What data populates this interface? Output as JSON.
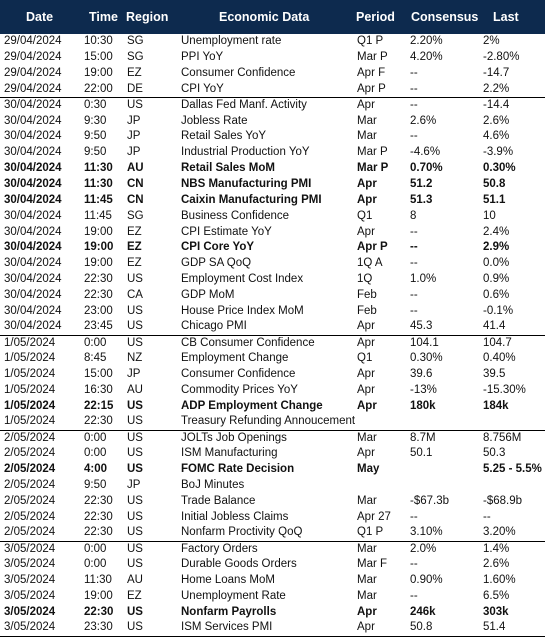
{
  "header": {
    "date": "Date",
    "time": "Time",
    "region": "Region",
    "data": "Economic Data",
    "period": "Period",
    "consensus": "Consensus",
    "last": "Last"
  },
  "rows": [
    {
      "date": "29/04/2024",
      "time": "10:30",
      "region": "SG",
      "data": "Unemployment rate",
      "period": "Q1 P",
      "consensus": "2.20%",
      "last": "2%"
    },
    {
      "date": "29/04/2024",
      "time": "15:00",
      "region": "SG",
      "data": "PPI YoY",
      "period": "Mar P",
      "consensus": "4.20%",
      "last": "-2.80%"
    },
    {
      "date": "29/04/2024",
      "time": "19:00",
      "region": "EZ",
      "data": "Consumer Confidence",
      "period": "Apr F",
      "consensus": "--",
      "last": "-14.7"
    },
    {
      "date": "29/04/2024",
      "time": "22:00",
      "region": "DE",
      "data": "CPI YoY",
      "period": "Apr P",
      "consensus": "--",
      "last": "2.2%"
    },
    {
      "date": "30/04/2024",
      "time": "0:30",
      "region": "US",
      "data": "Dallas Fed Manf. Activity",
      "period": "Apr",
      "consensus": "--",
      "last": "-14.4"
    },
    {
      "date": "30/04/2024",
      "time": "9:30",
      "region": "JP",
      "data": "Jobless Rate",
      "period": "Mar",
      "consensus": "2.6%",
      "last": "2.6%"
    },
    {
      "date": "30/04/2024",
      "time": "9:50",
      "region": "JP",
      "data": "Retail Sales YoY",
      "period": "Mar",
      "consensus": "--",
      "last": "4.6%"
    },
    {
      "date": "30/04/2024",
      "time": "9:50",
      "region": "JP",
      "data": "Industrial Production YoY",
      "period": "Mar P",
      "consensus": "-4.6%",
      "last": "-3.9%"
    },
    {
      "date": "30/04/2024",
      "time": "11:30",
      "region": "AU",
      "data": "Retail Sales MoM",
      "period": "Mar P",
      "consensus": "0.70%",
      "last": "0.30%"
    },
    {
      "date": "30/04/2024",
      "time": "11:30",
      "region": "CN",
      "data": "NBS Manufacturing PMI",
      "period": "Apr",
      "consensus": "51.2",
      "last": "50.8"
    },
    {
      "date": "30/04/2024",
      "time": "11:45",
      "region": "CN",
      "data": "Caixin Manufacturing PMI",
      "period": "Apr",
      "consensus": "51.3",
      "last": "51.1"
    },
    {
      "date": "30/04/2024",
      "time": "11:45",
      "region": "SG",
      "data": "Business Confidence",
      "period": "Q1",
      "consensus": "8",
      "last": "10"
    },
    {
      "date": "30/04/2024",
      "time": "19:00",
      "region": "EZ",
      "data": "CPI Estimate YoY",
      "period": "Apr",
      "consensus": "--",
      "last": "2.4%"
    },
    {
      "date": "30/04/2024",
      "time": "19:00",
      "region": "EZ",
      "data": "CPI Core YoY",
      "period": "Apr P",
      "consensus": "--",
      "last": "2.9%"
    },
    {
      "date": "30/04/2024",
      "time": "19:00",
      "region": "EZ",
      "data": "GDP SA QoQ",
      "period": "1Q A",
      "consensus": "--",
      "last": "0.0%"
    },
    {
      "date": "30/04/2024",
      "time": "22:30",
      "region": "US",
      "data": "Employment Cost Index",
      "period": "1Q",
      "consensus": "1.0%",
      "last": "0.9%"
    },
    {
      "date": "30/04/2024",
      "time": "22:30",
      "region": "CA",
      "data": "GDP MoM",
      "period": "Feb",
      "consensus": "--",
      "last": "0.6%"
    },
    {
      "date": "30/04/2024",
      "time": "23:00",
      "region": "US",
      "data": "House Price Index MoM",
      "period": "Feb",
      "consensus": "--",
      "last": "-0.1%"
    },
    {
      "date": "30/04/2024",
      "time": "23:45",
      "region": "US",
      "data": "Chicago PMI",
      "period": "Apr",
      "consensus": "45.3",
      "last": "41.4"
    },
    {
      "date": "1/05/2024",
      "time": "0:00",
      "region": "US",
      "data": "CB Consumer Confidence",
      "period": "Apr",
      "consensus": "104.1",
      "last": "104.7"
    },
    {
      "date": "1/05/2024",
      "time": "8:45",
      "region": "NZ",
      "data": "Employment Change",
      "period": "Q1",
      "consensus": "0.30%",
      "last": "0.40%"
    },
    {
      "date": "1/05/2024",
      "time": "15:00",
      "region": "JP",
      "data": "Consumer Confidence",
      "period": "Apr",
      "consensus": "39.6",
      "last": "39.5"
    },
    {
      "date": "1/05/2024",
      "time": "16:30",
      "region": "AU",
      "data": "Commodity Prices YoY",
      "period": "Apr",
      "consensus": "-13%",
      "last": "-15.30%"
    },
    {
      "date": "1/05/2024",
      "time": "22:15",
      "region": "US",
      "data": "ADP Employment Change",
      "period": "Apr",
      "consensus": "180k",
      "last": "184k"
    },
    {
      "date": "1/05/2024",
      "time": "22:30",
      "region": "US",
      "data": "Treasury Refunding Annoucement",
      "period": "",
      "consensus": "",
      "last": ""
    },
    {
      "date": "2/05/2024",
      "time": "0:00",
      "region": "US",
      "data": "JOLTs Job Openings",
      "period": "Mar",
      "consensus": "8.7M",
      "last": "8.756M"
    },
    {
      "date": "2/05/2024",
      "time": "0:00",
      "region": "US",
      "data": "ISM Manufacturing",
      "period": "Apr",
      "consensus": "50.1",
      "last": "50.3"
    },
    {
      "date": "2/05/2024",
      "time": "4:00",
      "region": "US",
      "data": "FOMC Rate Decision",
      "period": "May",
      "consensus": "",
      "last": "5.25 - 5.5%"
    },
    {
      "date": "2/05/2024",
      "time": "9:50",
      "region": "JP",
      "data": "BoJ Minutes",
      "period": "",
      "consensus": "",
      "last": ""
    },
    {
      "date": "2/05/2024",
      "time": "22:30",
      "region": "US",
      "data": "Trade Balance",
      "period": "Mar",
      "consensus": "-$67.3b",
      "last": "-$68.9b"
    },
    {
      "date": "2/05/2024",
      "time": "22:30",
      "region": "US",
      "data": "Initial Jobless Claims",
      "period": "Apr 27",
      "consensus": "--",
      "last": "--"
    },
    {
      "date": "2/05/2024",
      "time": "22:30",
      "region": "US",
      "data": "Nonfarm Proctivity QoQ",
      "period": "Q1 P",
      "consensus": "3.10%",
      "last": "3.20%"
    },
    {
      "date": "3/05/2024",
      "time": "0:00",
      "region": "US",
      "data": "Factory Orders",
      "period": "Mar",
      "consensus": "2.0%",
      "last": "1.4%"
    },
    {
      "date": "3/05/2024",
      "time": "0:00",
      "region": "US",
      "data": "Durable Goods Orders",
      "period": "Mar F",
      "consensus": "--",
      "last": "2.6%"
    },
    {
      "date": "3/05/2024",
      "time": "11:30",
      "region": "AU",
      "data": "Home Loans MoM",
      "period": "Mar",
      "consensus": "0.90%",
      "last": "1.60%"
    },
    {
      "date": "3/05/2024",
      "time": "19:00",
      "region": "EZ",
      "data": "Unemployment Rate",
      "period": "Mar",
      "consensus": "--",
      "last": "6.5%"
    },
    {
      "date": "3/05/2024",
      "time": "22:30",
      "region": "US",
      "data": "Nonfarm Payrolls",
      "period": "Apr",
      "consensus": "246k",
      "last": "303k"
    },
    {
      "date": "3/05/2024",
      "time": "23:30",
      "region": "US",
      "data": "ISM Services PMI",
      "period": "Apr",
      "consensus": "50.8",
      "last": "51.4"
    }
  ]
}
